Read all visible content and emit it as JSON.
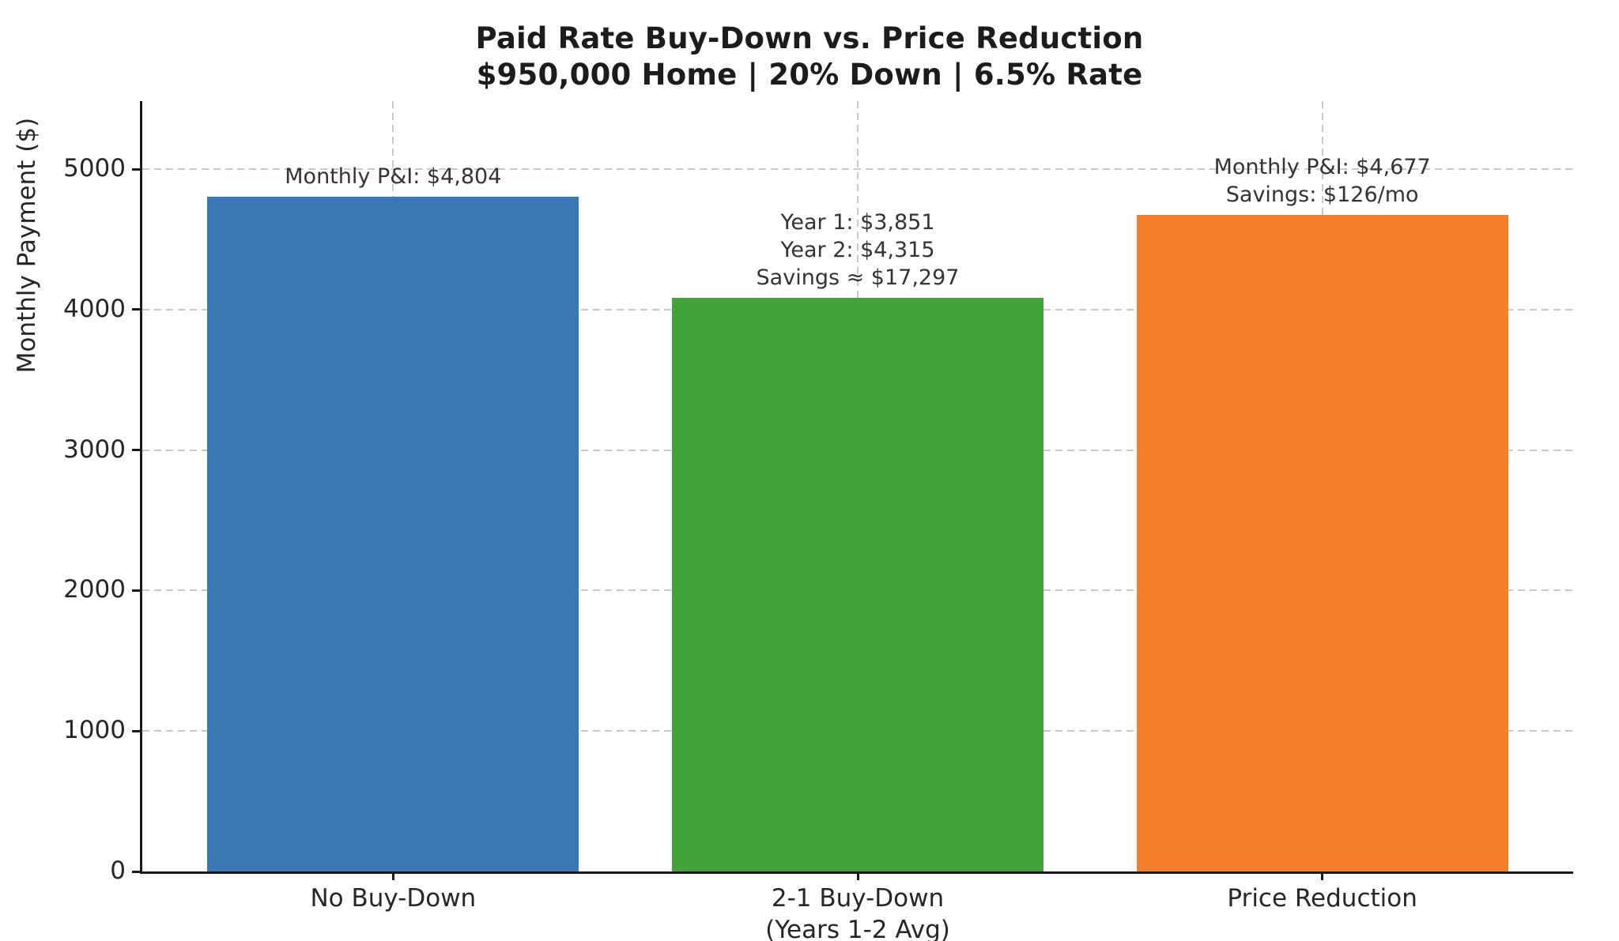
{
  "chart_data": {
    "type": "bar",
    "title": "Paid Rate Buy-Down vs. Price Reduction",
    "subtitle": "$950,000 Home | 20% Down | 6.5% Rate",
    "ylabel": "Monthly Payment ($)",
    "xlabel": "",
    "ylim": [
      0,
      5485
    ],
    "xlim": [
      -0.54,
      2.54
    ],
    "yticks": [
      0,
      1000,
      2000,
      3000,
      4000,
      5000
    ],
    "grid": "dashed, both axes, light gray, behind bars",
    "legend": "none",
    "bar_width": 0.8,
    "categories": [
      "No Buy-Down",
      "2-1 Buy-Down\n(Years 1-2 Avg)",
      "Price Reduction"
    ],
    "values": [
      4804,
      4083,
      4677
    ],
    "bar_colors": [
      "#3a78b5",
      "#43a33b",
      "#f57f28"
    ],
    "annotations": [
      "Monthly P&I: $4,804",
      "Year 1: $3,851\nYear 2: $4,315\nSavings ≈ $17,297",
      "Monthly P&I: $4,677\nSavings: $126/mo"
    ],
    "notes": {
      "no_buydown_monthly_pi": "$4,804",
      "buydown_year1": "$3,851",
      "buydown_year2": "$4,315",
      "buydown_savings": "$17,297",
      "price_reduction_monthly_pi": "$4,677",
      "price_reduction_savings": "$126/mo"
    }
  }
}
